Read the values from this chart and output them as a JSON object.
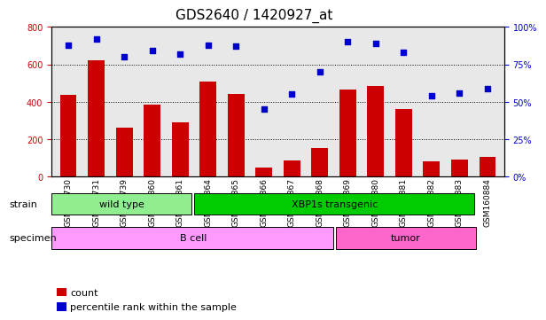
{
  "title": "GDS2640 / 1420927_at",
  "samples": [
    "GSM160730",
    "GSM160731",
    "GSM160739",
    "GSM160860",
    "GSM160861",
    "GSM160864",
    "GSM160865",
    "GSM160866",
    "GSM160867",
    "GSM160868",
    "GSM160869",
    "GSM160880",
    "GSM160881",
    "GSM160882",
    "GSM160883",
    "GSM160884"
  ],
  "counts": [
    435,
    620,
    260,
    385,
    290,
    510,
    440,
    50,
    85,
    155,
    465,
    485,
    360,
    80,
    90,
    105
  ],
  "percentiles": [
    88,
    92,
    80,
    84,
    82,
    88,
    87,
    45,
    55,
    70,
    90,
    89,
    83,
    54,
    56,
    59
  ],
  "bar_color": "#cc0000",
  "dot_color": "#0000cc",
  "ylim_left": [
    0,
    800
  ],
  "ylim_right": [
    0,
    100
  ],
  "yticks_left": [
    0,
    200,
    400,
    600,
    800
  ],
  "yticks_right": [
    0,
    25,
    50,
    75,
    100
  ],
  "yticklabels_right": [
    "0%",
    "25%",
    "50%",
    "75%",
    "100%"
  ],
  "strain_groups": [
    {
      "label": "wild type",
      "start": 0,
      "end": 5,
      "color": "#90ee90"
    },
    {
      "label": "XBP1s transgenic",
      "start": 5,
      "end": 15,
      "color": "#00cc00"
    }
  ],
  "specimen_groups": [
    {
      "label": "B cell",
      "start": 0,
      "end": 10,
      "color": "#ff99ff"
    },
    {
      "label": "tumor",
      "start": 10,
      "end": 15,
      "color": "#ff66cc"
    }
  ],
  "strain_label": "strain",
  "specimen_label": "specimen",
  "legend_count_label": "count",
  "legend_pct_label": "percentile rank within the sample",
  "grid_color": "#000000",
  "background_color": "#ffffff",
  "tick_label_color": "#cc0000",
  "right_tick_color": "#0000cc"
}
